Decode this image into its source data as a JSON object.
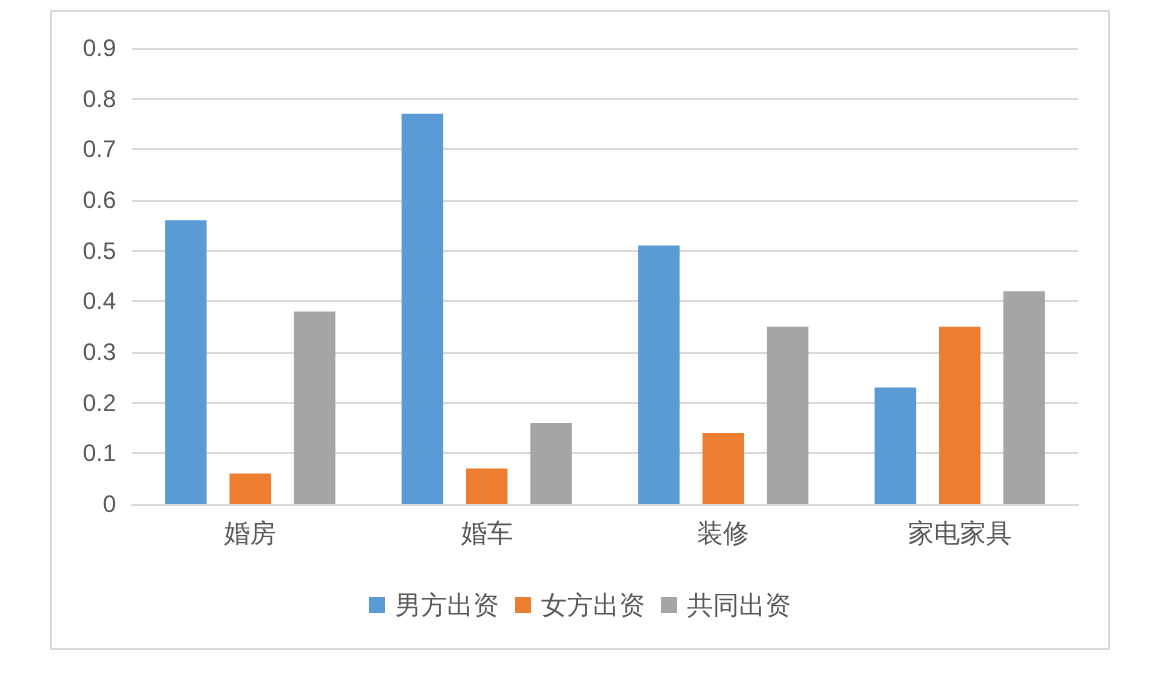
{
  "chart_data": {
    "type": "bar",
    "categories": [
      "婚房",
      "婚车",
      "装修",
      "家电家具"
    ],
    "series": [
      {
        "name": "男方出资",
        "color": "#5b9bd5",
        "values": [
          0.56,
          0.77,
          0.51,
          0.23
        ]
      },
      {
        "name": "女方出资",
        "color": "#ed7d31",
        "values": [
          0.06,
          0.07,
          0.14,
          0.35
        ]
      },
      {
        "name": "共同出资",
        "color": "#a5a5a5",
        "values": [
          0.38,
          0.16,
          0.35,
          0.42
        ]
      }
    ],
    "ylim": [
      0,
      0.9
    ],
    "yticks": [
      0,
      0.1,
      0.2,
      0.3,
      0.4,
      0.5,
      0.6,
      0.7,
      0.8,
      0.9
    ],
    "grid": "y",
    "legend": "bottom"
  }
}
